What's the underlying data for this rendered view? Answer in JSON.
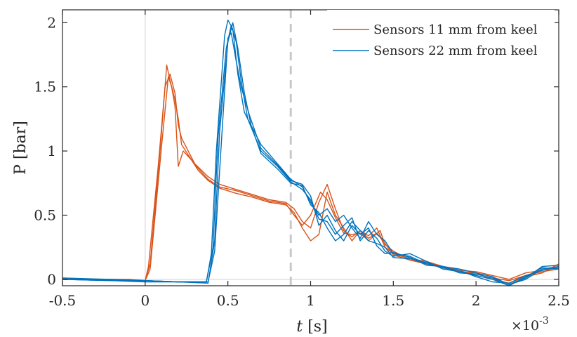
{
  "chart_data": {
    "type": "line",
    "xlabel_var": "t",
    "xlabel_unit": "[s]",
    "ylabel": "P [bar]",
    "x_multiplier_base": "×10",
    "x_multiplier_exp": "-3",
    "xlim": [
      -0.5,
      2.5
    ],
    "ylim": [
      -0.05,
      2.1
    ],
    "xticks": [
      -0.5,
      0,
      0.5,
      1,
      1.5,
      2,
      2.5
    ],
    "xtick_labels": [
      "-0.5",
      "0",
      "0.5",
      "1",
      "1.5",
      "2",
      "2.5"
    ],
    "yticks": [
      0,
      0.5,
      1,
      1.5,
      2
    ],
    "ytick_labels": [
      "0",
      "0.5",
      "1",
      "1.5",
      "2"
    ],
    "vline_x": 0.88,
    "zero_line_x": 0,
    "legend_position": "top-right",
    "colors": {
      "orange": "#d95319",
      "blue": "#0072bd",
      "dashed": "#c8c8c8",
      "axis": "#262626",
      "zero": "#d9d9d9"
    },
    "series": [
      {
        "name": "Sensors 11 mm from keel",
        "color": "#d95319",
        "runs": [
          {
            "x": [
              -0.5,
              -0.3,
              -0.1,
              0.0,
              0.02,
              0.08,
              0.12,
              0.15,
              0.18,
              0.2,
              0.22,
              0.26,
              0.3,
              0.38,
              0.45,
              0.55,
              0.65,
              0.75,
              0.85,
              0.9,
              0.95,
              1.0,
              1.05,
              1.1,
              1.15,
              1.2,
              1.25,
              1.3,
              1.35,
              1.4,
              1.45,
              1.5,
              1.6,
              1.7,
              1.8,
              1.9,
              2.0,
              2.1,
              2.2,
              2.3,
              2.4,
              2.5
            ],
            "y": [
              0.0,
              0.0,
              -0.01,
              -0.01,
              0.1,
              0.9,
              1.5,
              1.6,
              1.45,
              1.2,
              1.1,
              1.0,
              0.9,
              0.8,
              0.74,
              0.7,
              0.66,
              0.62,
              0.6,
              0.55,
              0.45,
              0.4,
              0.6,
              0.74,
              0.55,
              0.38,
              0.33,
              0.38,
              0.34,
              0.4,
              0.25,
              0.2,
              0.16,
              0.14,
              0.1,
              0.07,
              0.06,
              0.03,
              0.0,
              0.05,
              0.07,
              0.1
            ]
          },
          {
            "x": [
              -0.5,
              -0.3,
              -0.1,
              0.0,
              0.03,
              0.09,
              0.13,
              0.15,
              0.18,
              0.2,
              0.22,
              0.27,
              0.31,
              0.38,
              0.45,
              0.55,
              0.65,
              0.75,
              0.85,
              0.9,
              0.95,
              1.0,
              1.06,
              1.1,
              1.15,
              1.2,
              1.25,
              1.3,
              1.35,
              1.42,
              1.45,
              1.5,
              1.6,
              1.7,
              1.8,
              1.9,
              2.0,
              2.1,
              2.2,
              2.3,
              2.4,
              2.5
            ],
            "y": [
              0.01,
              0.0,
              -0.01,
              -0.01,
              0.12,
              1.0,
              1.67,
              1.55,
              1.4,
              1.25,
              1.05,
              0.95,
              0.88,
              0.78,
              0.72,
              0.69,
              0.65,
              0.61,
              0.59,
              0.5,
              0.42,
              0.5,
              0.68,
              0.62,
              0.48,
              0.36,
              0.35,
              0.36,
              0.3,
              0.38,
              0.27,
              0.22,
              0.15,
              0.12,
              0.09,
              0.06,
              0.04,
              0.01,
              -0.01,
              0.03,
              0.06,
              0.08
            ]
          },
          {
            "x": [
              -0.5,
              -0.3,
              -0.1,
              0.0,
              0.03,
              0.1,
              0.14,
              0.16,
              0.18,
              0.2,
              0.23,
              0.28,
              0.32,
              0.38,
              0.45,
              0.55,
              0.65,
              0.75,
              0.85,
              0.9,
              0.95,
              1.0,
              1.05,
              1.1,
              1.15,
              1.2,
              1.25,
              1.3,
              1.35,
              1.4,
              1.45,
              1.5,
              1.6,
              1.7,
              1.8,
              1.9,
              2.0,
              2.1,
              2.2,
              2.3,
              2.4,
              2.5
            ],
            "y": [
              0.0,
              0.0,
              0.0,
              -0.01,
              0.08,
              1.05,
              1.58,
              1.5,
              1.35,
              0.88,
              1.0,
              0.93,
              0.85,
              0.77,
              0.71,
              0.67,
              0.64,
              0.6,
              0.58,
              0.52,
              0.4,
              0.3,
              0.35,
              0.68,
              0.5,
              0.4,
              0.3,
              0.38,
              0.32,
              0.36,
              0.28,
              0.19,
              0.15,
              0.13,
              0.1,
              0.06,
              0.05,
              0.0,
              -0.03,
              0.02,
              0.05,
              0.12
            ]
          }
        ]
      },
      {
        "name": "Sensors 22 mm from keel",
        "color": "#0072bd",
        "runs": [
          {
            "x": [
              -0.5,
              -0.2,
              0.0,
              0.2,
              0.37,
              0.4,
              0.43,
              0.48,
              0.5,
              0.53,
              0.56,
              0.6,
              0.7,
              0.8,
              0.88,
              0.95,
              1.0,
              1.05,
              1.1,
              1.15,
              1.2,
              1.25,
              1.3,
              1.35,
              1.4,
              1.45,
              1.5,
              1.6,
              1.7,
              1.8,
              1.9,
              2.0,
              2.1,
              2.2,
              2.3,
              2.4,
              2.5
            ],
            "y": [
              0.0,
              -0.01,
              -0.01,
              -0.02,
              -0.02,
              0.2,
              1.0,
              1.9,
              2.02,
              1.95,
              1.6,
              1.3,
              1.05,
              0.9,
              0.78,
              0.72,
              0.6,
              0.5,
              0.55,
              0.45,
              0.5,
              0.4,
              0.32,
              0.45,
              0.35,
              0.3,
              0.2,
              0.18,
              0.12,
              0.1,
              0.08,
              0.05,
              0.02,
              -0.04,
              0.0,
              0.08,
              0.1
            ]
          },
          {
            "x": [
              -0.5,
              -0.2,
              0.0,
              0.2,
              0.37,
              0.41,
              0.44,
              0.49,
              0.52,
              0.55,
              0.58,
              0.62,
              0.7,
              0.8,
              0.88,
              0.95,
              1.0,
              1.05,
              1.1,
              1.15,
              1.2,
              1.25,
              1.3,
              1.35,
              1.4,
              1.45,
              1.5,
              1.6,
              1.7,
              1.8,
              1.9,
              2.0,
              2.1,
              2.2,
              2.3,
              2.4,
              2.5
            ],
            "y": [
              0.0,
              -0.01,
              -0.02,
              -0.02,
              -0.02,
              0.25,
              1.1,
              1.8,
              1.98,
              1.85,
              1.55,
              1.25,
              1.0,
              0.88,
              0.76,
              0.7,
              0.62,
              0.47,
              0.45,
              0.35,
              0.42,
              0.48,
              0.3,
              0.38,
              0.32,
              0.22,
              0.18,
              0.2,
              0.14,
              0.08,
              0.06,
              0.03,
              0.0,
              -0.05,
              0.02,
              0.09,
              0.08
            ]
          },
          {
            "x": [
              -0.5,
              -0.2,
              0.0,
              0.2,
              0.38,
              0.42,
              0.45,
              0.5,
              0.53,
              0.56,
              0.6,
              0.64,
              0.7,
              0.8,
              0.88,
              0.95,
              1.0,
              1.05,
              1.1,
              1.15,
              1.2,
              1.25,
              1.3,
              1.35,
              1.4,
              1.45,
              1.5,
              1.6,
              1.7,
              1.8,
              1.9,
              2.0,
              2.1,
              2.2,
              2.3,
              2.4,
              2.5
            ],
            "y": [
              0.0,
              0.0,
              -0.01,
              -0.02,
              -0.03,
              0.3,
              1.15,
              1.85,
              2.0,
              1.8,
              1.45,
              1.2,
              0.98,
              0.86,
              0.75,
              0.73,
              0.58,
              0.52,
              0.4,
              0.3,
              0.35,
              0.45,
              0.38,
              0.3,
              0.28,
              0.25,
              0.17,
              0.16,
              0.13,
              0.09,
              0.07,
              0.02,
              -0.02,
              -0.03,
              0.03,
              0.07,
              0.09
            ]
          },
          {
            "x": [
              -0.5,
              -0.2,
              0.0,
              0.2,
              0.38,
              0.42,
              0.46,
              0.5,
              0.52,
              0.55,
              0.58,
              0.63,
              0.7,
              0.8,
              0.88,
              0.95,
              1.0,
              1.05,
              1.1,
              1.15,
              1.2,
              1.25,
              1.3,
              1.35,
              1.4,
              1.45,
              1.5,
              1.6,
              1.7,
              1.8,
              1.9,
              2.0,
              2.1,
              2.2,
              2.3,
              2.4,
              2.5
            ],
            "y": [
              0.01,
              0.0,
              -0.01,
              -0.02,
              -0.02,
              0.22,
              1.05,
              1.88,
              1.92,
              1.7,
              1.5,
              1.28,
              1.02,
              0.89,
              0.77,
              0.74,
              0.65,
              0.42,
              0.5,
              0.38,
              0.3,
              0.42,
              0.35,
              0.4,
              0.26,
              0.2,
              0.21,
              0.17,
              0.11,
              0.1,
              0.05,
              0.04,
              0.01,
              -0.04,
              0.01,
              0.1,
              0.11
            ]
          }
        ]
      }
    ]
  }
}
